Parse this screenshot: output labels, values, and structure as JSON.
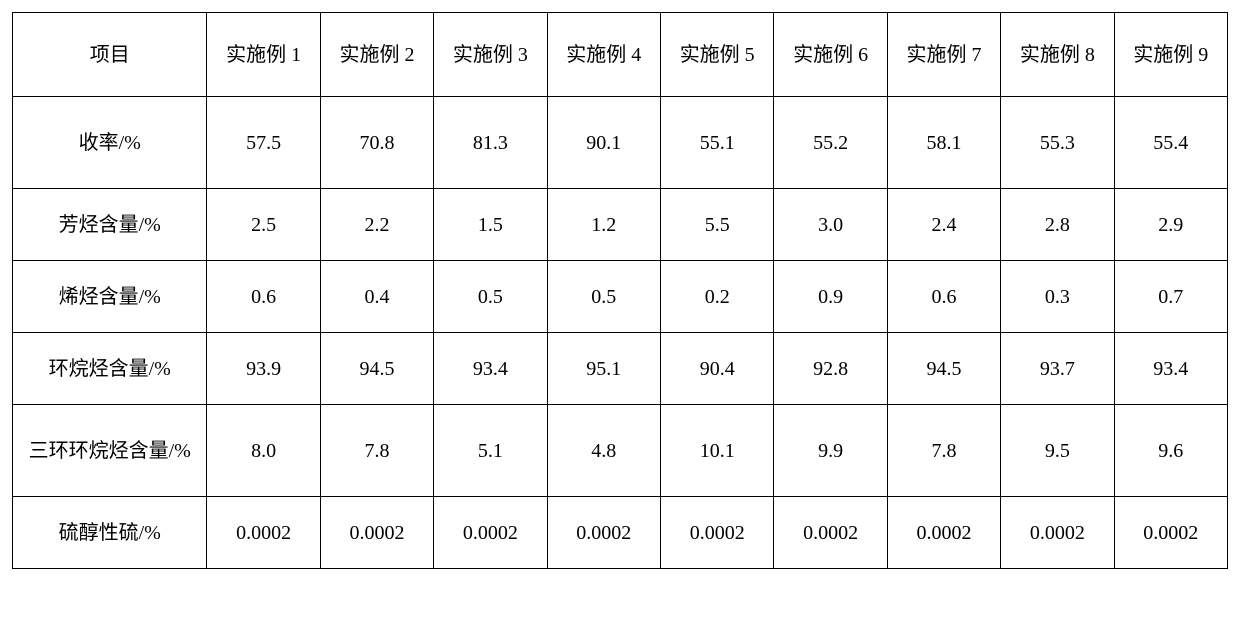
{
  "table": {
    "type": "table",
    "background_color": "#ffffff",
    "border_color": "#000000",
    "font_size": 20,
    "text_color": "#000000",
    "columns": [
      {
        "label": "项目",
        "width_pct": 16,
        "align": "center"
      },
      {
        "label": "实施例 1",
        "width_pct": 9.33,
        "align": "center"
      },
      {
        "label": "实施例 2",
        "width_pct": 9.33,
        "align": "center"
      },
      {
        "label": "实施例 3",
        "width_pct": 9.33,
        "align": "center"
      },
      {
        "label": "实施例 4",
        "width_pct": 9.33,
        "align": "center"
      },
      {
        "label": "实施例 5",
        "width_pct": 9.33,
        "align": "center"
      },
      {
        "label": "实施例 6",
        "width_pct": 9.33,
        "align": "center"
      },
      {
        "label": "实施例 7",
        "width_pct": 9.33,
        "align": "center"
      },
      {
        "label": "实施例 8",
        "width_pct": 9.33,
        "align": "center"
      },
      {
        "label": "实施例 9",
        "width_pct": 9.33,
        "align": "center"
      }
    ],
    "rows": [
      {
        "label": "收率/%",
        "values": [
          "57.5",
          "70.8",
          "81.3",
          "90.1",
          "55.1",
          "55.2",
          "58.1",
          "55.3",
          "55.4"
        ]
      },
      {
        "label": "芳烃含量/%",
        "values": [
          "2.5",
          "2.2",
          "1.5",
          "1.2",
          "5.5",
          "3.0",
          "2.4",
          "2.8",
          "2.9"
        ]
      },
      {
        "label": "烯烃含量/%",
        "values": [
          "0.6",
          "0.4",
          "0.5",
          "0.5",
          "0.2",
          "0.9",
          "0.6",
          "0.3",
          "0.7"
        ]
      },
      {
        "label": "环烷烃含量/%",
        "values": [
          "93.9",
          "94.5",
          "93.4",
          "95.1",
          "90.4",
          "92.8",
          "94.5",
          "93.7",
          "93.4"
        ]
      },
      {
        "label": "三环环烷烃含量/%",
        "values": [
          "8.0",
          "7.8",
          "5.1",
          "4.8",
          "10.1",
          "9.9",
          "7.8",
          "9.5",
          "9.6"
        ]
      },
      {
        "label": "硫醇性硫/%",
        "values": [
          "0.0002",
          "0.0002",
          "0.0002",
          "0.0002",
          "0.0002",
          "0.0002",
          "0.0002",
          "0.0002",
          "0.0002"
        ]
      }
    ],
    "header_row_height": 84,
    "tall_row_indices": [
      0,
      4
    ],
    "normal_row_height": 72,
    "tall_row_height": 92
  }
}
